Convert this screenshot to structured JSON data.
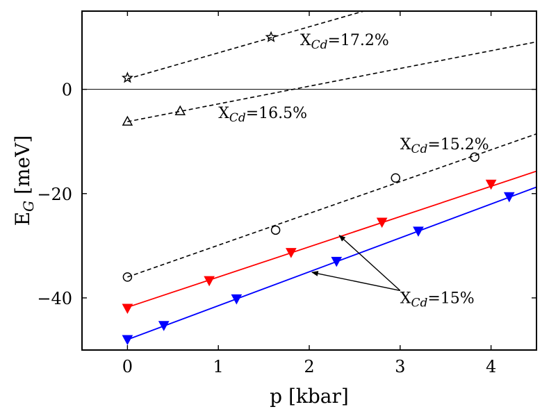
{
  "chart_data": {
    "type": "line",
    "xlabel": "p [kbar]",
    "ylabel": {
      "main": "E",
      "sub": "G",
      "unit": " [meV]"
    },
    "xlim": [
      -0.5,
      4.5
    ],
    "ylim": [
      -50,
      15
    ],
    "xticks": [
      0,
      1,
      2,
      3,
      4
    ],
    "yticks": [
      -40,
      -20,
      0
    ],
    "ytick_labels": [
      "−40",
      "−20",
      "0"
    ],
    "zero_line": true,
    "grid": false,
    "series": [
      {
        "name": "XCd=17.2% fit",
        "kind": "fit",
        "style": "dashed",
        "color": "#000000",
        "slope": 5.0,
        "intercept": 2.0
      },
      {
        "name": "XCd=16.5% fit",
        "kind": "fit",
        "style": "dashed",
        "color": "#000000",
        "slope": 3.4,
        "intercept": -6.2
      },
      {
        "name": "XCd=15.2% fit",
        "kind": "fit",
        "style": "dashed",
        "color": "#000000",
        "slope": 6.1,
        "intercept": -36.0
      },
      {
        "name": "XCd=15% red fit",
        "kind": "fit",
        "style": "solid",
        "color": "#ff0000",
        "slope": 5.8,
        "intercept": -41.8
      },
      {
        "name": "XCd=15% blue fit",
        "kind": "fit",
        "style": "solid",
        "color": "#0000ff",
        "slope": 6.5,
        "intercept": -48.0
      },
      {
        "name": "XCd=17.2%",
        "kind": "points",
        "marker": "star",
        "color": "#000000",
        "x": [
          0,
          1.58
        ],
        "y": [
          2.2,
          10.0
        ]
      },
      {
        "name": "XCd=16.5%",
        "kind": "points",
        "marker": "triangle-up",
        "color": "#000000",
        "x": [
          0,
          0.58
        ],
        "y": [
          -6.2,
          -4.2
        ]
      },
      {
        "name": "XCd=15.2%",
        "kind": "points",
        "marker": "circle",
        "color": "#000000",
        "x": [
          0,
          1.63,
          2.95,
          3.82
        ],
        "y": [
          -36.0,
          -27.0,
          -17.0,
          -13.0
        ]
      },
      {
        "name": "XCd=15% red",
        "kind": "points",
        "marker": "triangle-down",
        "color": "#ff0000",
        "x": [
          0,
          0.9,
          1.8,
          2.8,
          4.0
        ],
        "y": [
          -42.0,
          -36.7,
          -31.3,
          -25.5,
          -18.2
        ]
      },
      {
        "name": "XCd=15% blue",
        "kind": "points",
        "marker": "triangle-down",
        "color": "#0000ff",
        "x": [
          0,
          0.4,
          1.2,
          2.3,
          3.2,
          4.2
        ],
        "y": [
          -48.0,
          -45.3,
          -40.2,
          -33.0,
          -27.2,
          -20.6
        ]
      }
    ],
    "annotations": [
      {
        "prefix": "X",
        "sub": "Cd",
        "value": "=17.2%",
        "x": 1.9,
        "y": 8.5
      },
      {
        "prefix": "X",
        "sub": "Cd",
        "value": "=16.5%",
        "x": 1.0,
        "y": -5.5
      },
      {
        "prefix": "X",
        "sub": "Cd",
        "value": "=15.2%",
        "x": 3.0,
        "y": -11.5
      },
      {
        "prefix": "X",
        "sub": "Cd",
        "value": "=15%",
        "x": 3.0,
        "y": -41.0
      }
    ],
    "arrows": [
      {
        "from": [
          3.0,
          -38.6
        ],
        "to": [
          2.33,
          -28.0
        ]
      },
      {
        "from": [
          3.0,
          -38.6
        ],
        "to": [
          2.03,
          -35.1
        ]
      }
    ]
  }
}
